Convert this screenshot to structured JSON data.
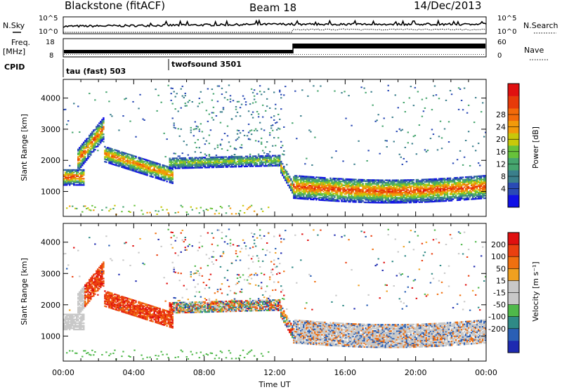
{
  "header": {
    "title": "Blackstone (fitACF)",
    "beam": "Beam 18",
    "date": "14/Dec/2013"
  },
  "noise_panel": {
    "left_label": "N.Sky",
    "right_label": "N.Search",
    "yticks_left": [
      "10^5",
      "10^0"
    ],
    "yticks_right": [
      "10^5",
      "10^0"
    ]
  },
  "freq_panel": {
    "left_label_1": "Freq.",
    "left_label_2": "[MHz]",
    "right_label": "Nave",
    "yticks_left": [
      "18",
      "8"
    ],
    "yticks_right": [
      "60",
      "0"
    ]
  },
  "cpid": {
    "label": "CPID",
    "modes": [
      {
        "name": "tau (fast) 503",
        "start": "00:00"
      },
      {
        "name": "twofsound 3501",
        "start": "06:00"
      }
    ]
  },
  "chart_data": [
    {
      "type": "heatmap",
      "name": "power",
      "ylabel": "Slant Range [km]",
      "yticks": [
        1000,
        2000,
        3000,
        4000
      ],
      "ylim": [
        200,
        4600
      ],
      "xlim_hours": [
        0,
        24
      ],
      "colorbar": {
        "label": "Power [dB]",
        "ticks": [
          4,
          8,
          12,
          16,
          20,
          24,
          28
        ],
        "colors": [
          "#1010e6",
          "#2a4ab5",
          "#3b7f8c",
          "#46a56e",
          "#67c23a",
          "#c8c80a",
          "#f29a0a",
          "#f26a0a",
          "#e63a0a",
          "#e01010"
        ]
      }
    },
    {
      "type": "heatmap",
      "name": "velocity",
      "ylabel": "Slant Range [km]",
      "xlabel": "Time UT",
      "yticks": [
        1000,
        2000,
        3000,
        4000
      ],
      "ylim": [
        200,
        4600
      ],
      "xlim_hours": [
        0,
        24
      ],
      "xticks": [
        "00:00",
        "04:00",
        "08:00",
        "12:00",
        "16:00",
        "20:00",
        "00:00"
      ],
      "colorbar": {
        "label": "Velocity [m s⁻¹]",
        "ticks": [
          200,
          100,
          50,
          15,
          -15,
          -50,
          -100,
          -200
        ],
        "colors": [
          "#1e2ab0",
          "#2a5fb5",
          "#2f8a86",
          "#4fb84a",
          "#c8c8c8",
          "#c8c8c8",
          "#f0a020",
          "#f07010",
          "#ea4010",
          "#e01010"
        ]
      }
    }
  ]
}
